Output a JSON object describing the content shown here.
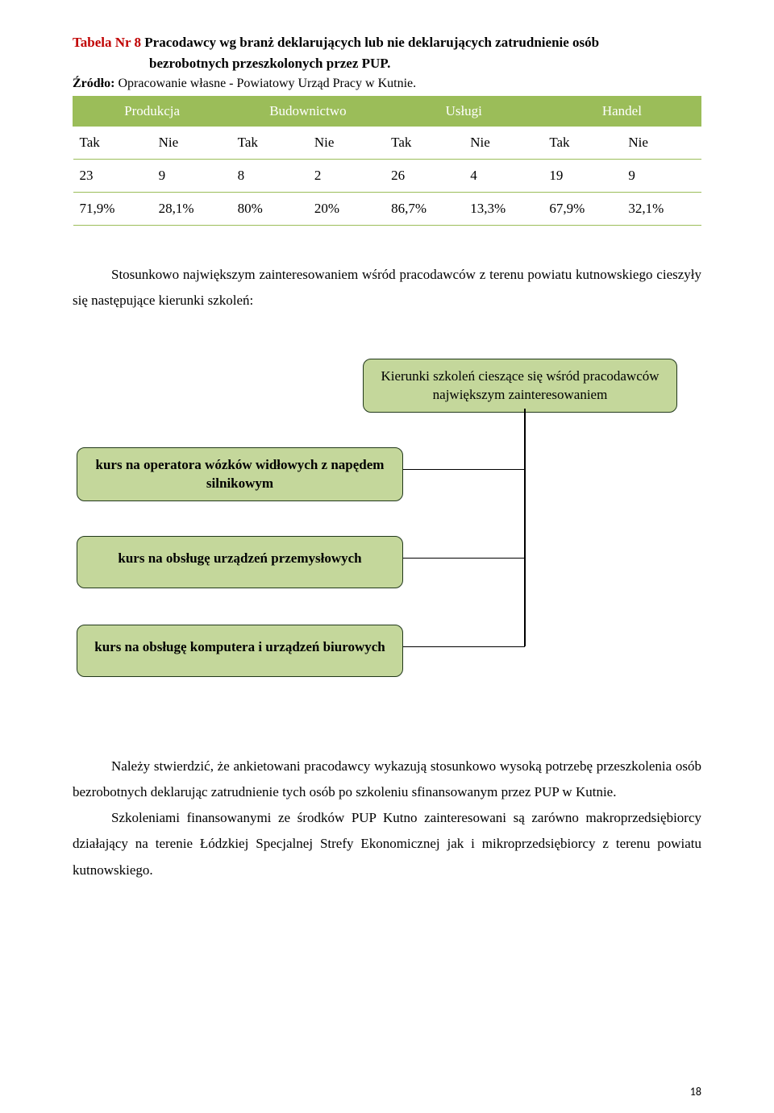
{
  "table_title": {
    "prefix": "Tabela Nr 8",
    "line1": " Pracodawcy wg branż deklarujących lub nie deklarujących zatrudnienie osób",
    "line2": "bezrobotnych przeszkolonych przez PUP."
  },
  "source": {
    "label": "Źródło:",
    "text": " Opracowanie własne - Powiatowy Urząd Pracy w Kutnie."
  },
  "table": {
    "header_bg": "#9bbd59",
    "header_fg": "#ffffff",
    "border_color": "#9bbd59",
    "groups": [
      "Produkcja",
      "Budownictwo",
      "Usługi",
      "Handel"
    ],
    "sub_headers": [
      "Tak",
      "Nie",
      "Tak",
      "Nie",
      "Tak",
      "Nie",
      "Tak",
      "Nie"
    ],
    "counts": [
      "23",
      "9",
      "8",
      "2",
      "26",
      "4",
      "19",
      "9"
    ],
    "percentages": [
      "71,9%",
      "28,1%",
      "80%",
      "20%",
      "86,7%",
      "13,3%",
      "67,9%",
      "32,1%"
    ]
  },
  "paragraph1": "Stosunkowo największym zainteresowaniem wśród pracodawców z terenu powiatu kutnowskiego cieszyły się następujące kierunki szkoleń:",
  "diagram": {
    "box_bg": "#c4d79b",
    "box_border": "#21381b",
    "header_line1": "Kierunki szkoleń cieszące się wśród pracodawców",
    "header_line2": "największym zainteresowaniem",
    "item1_line1": "kurs na operatora wózków widłowych z napędem",
    "item1_line2": "silnikowym",
    "item2": "kurs na obsługę urządzeń przemysłowych",
    "item3": "kurs na obsługę komputera i urządzeń biurowych"
  },
  "paragraph2": "Należy stwierdzić, że ankietowani pracodawcy wykazują stosunkowo wysoką potrzebę przeszkolenia osób bezrobotnych deklarując zatrudnienie tych  osób po szkoleniu sfinansowanym przez PUP w Kutnie.",
  "paragraph3": "Szkoleniami finansowanymi ze środków PUP Kutno zainteresowani są zarówno makroprzedsiębiorcy działający na terenie Łódzkiej Specjalnej Strefy Ekonomicznej jak i mikroprzedsiębiorcy z terenu powiatu kutnowskiego.",
  "page_number": "18"
}
